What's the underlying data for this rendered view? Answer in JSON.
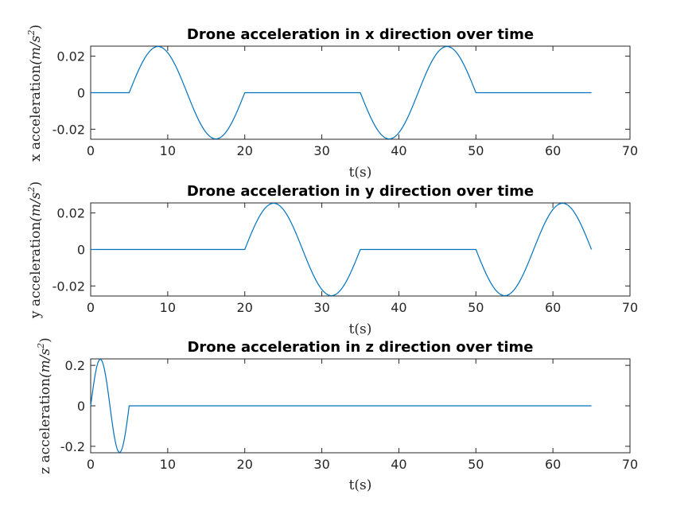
{
  "chart_data": [
    {
      "type": "line",
      "title": "Drone acceleration in x direction over time",
      "xlabel": "t(s)",
      "ylabel": {
        "prefix": "x acceleration",
        "unit_main": "(m/s",
        "unit_exp": "2",
        "unit_close": ")"
      },
      "xlim": [
        0,
        70
      ],
      "ylim": [
        -0.0255,
        0.0255
      ],
      "xticks": [
        0,
        10,
        20,
        30,
        40,
        50,
        60,
        70
      ],
      "xtick_labels": [
        "0",
        "10",
        "20",
        "30",
        "40",
        "50",
        "60",
        "70"
      ],
      "yticks": [
        -0.02,
        0,
        0.02
      ],
      "ytick_labels": [
        "-0.02",
        "0",
        "0.02"
      ],
      "grid": false,
      "series": [
        {
          "color": "#0072bd",
          "segments": [
            {
              "type": "flat",
              "x": [
                0,
                5
              ],
              "y": 0
            },
            {
              "type": "sine",
              "x": [
                5,
                20
              ],
              "amplitude": 0.0253,
              "period": 15
            },
            {
              "type": "flat",
              "x": [
                20,
                35
              ],
              "y": 0
            },
            {
              "type": "sine",
              "x": [
                35,
                50
              ],
              "amplitude": -0.0253,
              "period": 15
            },
            {
              "type": "flat",
              "x": [
                50,
                65
              ],
              "y": 0
            }
          ]
        }
      ]
    },
    {
      "type": "line",
      "title": "Drone acceleration in y direction over time",
      "xlabel": "t(s)",
      "ylabel": {
        "prefix": "y acceleration",
        "unit_main": "(m/s",
        "unit_exp": "2",
        "unit_close": ")"
      },
      "xlim": [
        0,
        70
      ],
      "ylim": [
        -0.0255,
        0.0255
      ],
      "xticks": [
        0,
        10,
        20,
        30,
        40,
        50,
        60,
        70
      ],
      "xtick_labels": [
        "0",
        "10",
        "20",
        "30",
        "40",
        "50",
        "60",
        "70"
      ],
      "yticks": [
        -0.02,
        0,
        0.02
      ],
      "ytick_labels": [
        "-0.02",
        "0",
        "0.02"
      ],
      "grid": false,
      "series": [
        {
          "color": "#0072bd",
          "segments": [
            {
              "type": "flat",
              "x": [
                0,
                20
              ],
              "y": 0
            },
            {
              "type": "sine",
              "x": [
                20,
                35
              ],
              "amplitude": 0.0253,
              "period": 15
            },
            {
              "type": "flat",
              "x": [
                35,
                50
              ],
              "y": 0
            },
            {
              "type": "sine",
              "x": [
                50,
                65
              ],
              "amplitude": -0.0253,
              "period": 15
            }
          ]
        }
      ]
    },
    {
      "type": "line",
      "title": "Drone acceleration in z direction over time",
      "xlabel": "t(s)",
      "ylabel": {
        "prefix": "z acceleration",
        "unit_main": "(m/s",
        "unit_exp": "2",
        "unit_close": ")"
      },
      "xlim": [
        0,
        70
      ],
      "ylim": [
        -0.232,
        0.232
      ],
      "xticks": [
        0,
        10,
        20,
        30,
        40,
        50,
        60,
        70
      ],
      "xtick_labels": [
        "0",
        "10",
        "20",
        "30",
        "40",
        "50",
        "60",
        "70"
      ],
      "yticks": [
        -0.2,
        0,
        0.2
      ],
      "ytick_labels": [
        "-0.2",
        "0",
        "0.2"
      ],
      "grid": false,
      "series": [
        {
          "color": "#0072bd",
          "segments": [
            {
              "type": "sine",
              "x": [
                0,
                5
              ],
              "amplitude": 0.23,
              "period": 5
            },
            {
              "type": "flat",
              "x": [
                5,
                65
              ],
              "y": 0
            }
          ]
        }
      ]
    }
  ]
}
